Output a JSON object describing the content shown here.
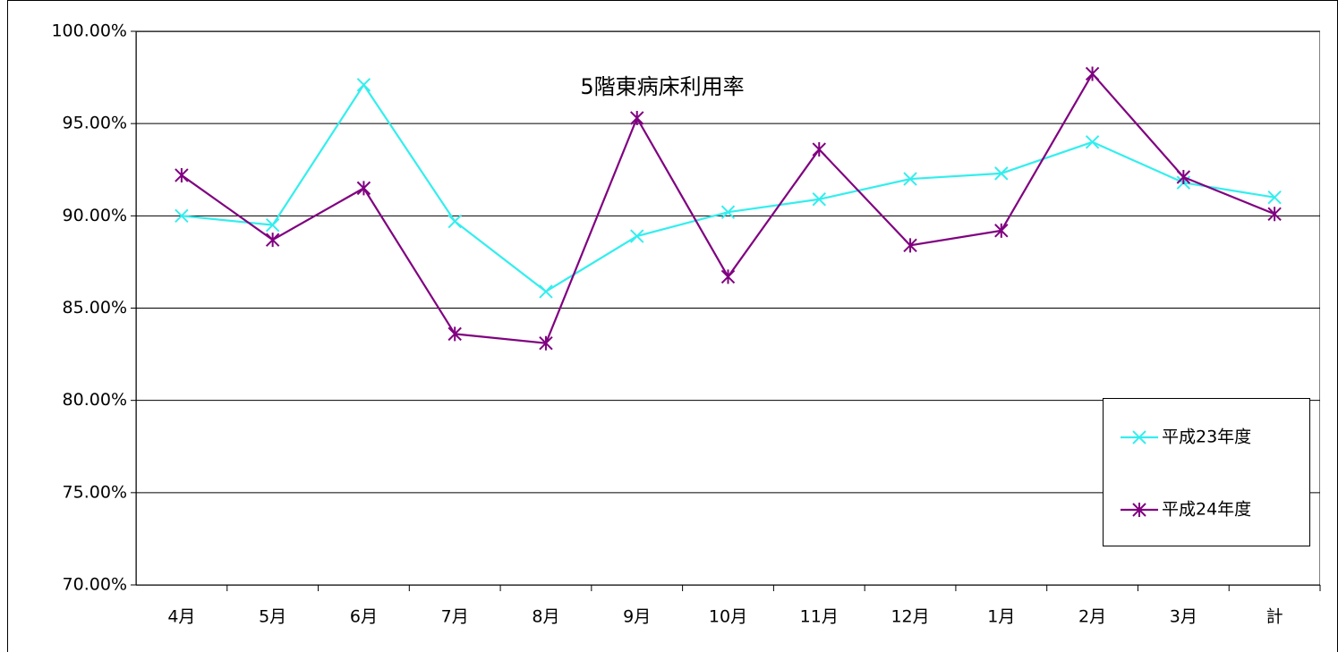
{
  "chart_data": {
    "type": "line",
    "title": "5階東病床利用率",
    "categories": [
      "4月",
      "5月",
      "6月",
      "7月",
      "8月",
      "9月",
      "10月",
      "11月",
      "12月",
      "1月",
      "2月",
      "3月",
      "計"
    ],
    "series": [
      {
        "name": "平成23年度",
        "color": "#33eeee",
        "marker": "x",
        "values": [
          90.0,
          89.5,
          97.1,
          89.7,
          85.9,
          88.9,
          90.2,
          90.9,
          92.0,
          92.3,
          94.0,
          91.8,
          91.0
        ]
      },
      {
        "name": "平成24年度",
        "color": "#800080",
        "marker": "star",
        "values": [
          92.2,
          88.7,
          91.5,
          83.6,
          83.1,
          95.3,
          86.7,
          93.6,
          88.4,
          89.2,
          97.7,
          92.1,
          90.1
        ]
      }
    ],
    "ylim": [
      70,
      100
    ],
    "yticks": [
      {
        "value": 70,
        "label": "70.00%"
      },
      {
        "value": 75,
        "label": "75.00%"
      },
      {
        "value": 80,
        "label": "80.00%"
      },
      {
        "value": 85,
        "label": "85.00%"
      },
      {
        "value": 90,
        "label": "90.00%"
      },
      {
        "value": 95,
        "label": "95.00%"
      },
      {
        "value": 100,
        "label": "100.00%"
      }
    ],
    "grid": true,
    "legend": "right"
  }
}
